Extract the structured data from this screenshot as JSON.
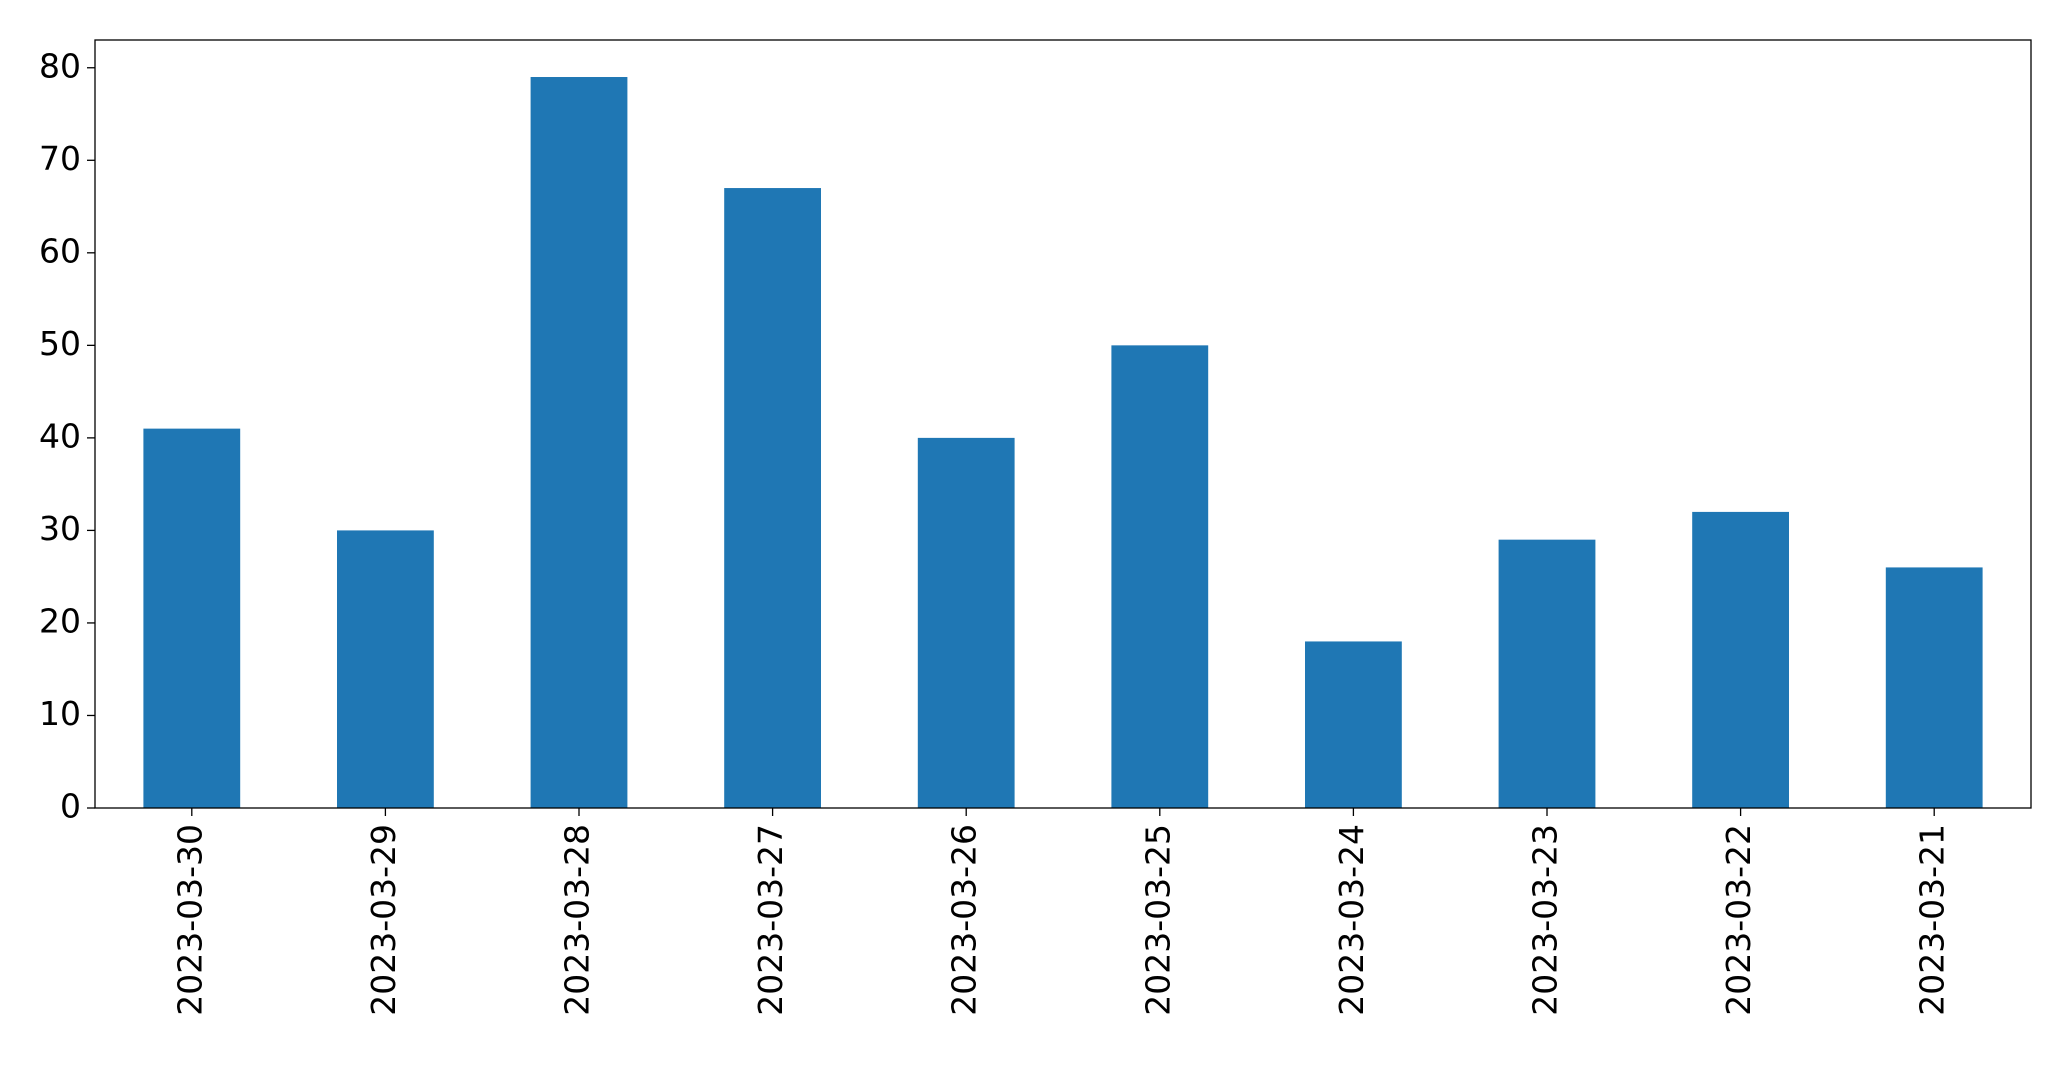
{
  "chart_data": {
    "type": "bar",
    "categories": [
      "2023-03-30",
      "2023-03-29",
      "2023-03-28",
      "2023-03-27",
      "2023-03-26",
      "2023-03-25",
      "2023-03-24",
      "2023-03-23",
      "2023-03-22",
      "2023-03-21"
    ],
    "values": [
      41,
      30,
      79,
      67,
      40,
      50,
      18,
      29,
      32,
      26
    ],
    "color": "#1f77b4",
    "ylim": [
      0,
      83
    ],
    "yticks": [
      0,
      10,
      20,
      30,
      40,
      50,
      60,
      70,
      80
    ],
    "grid": false
  }
}
